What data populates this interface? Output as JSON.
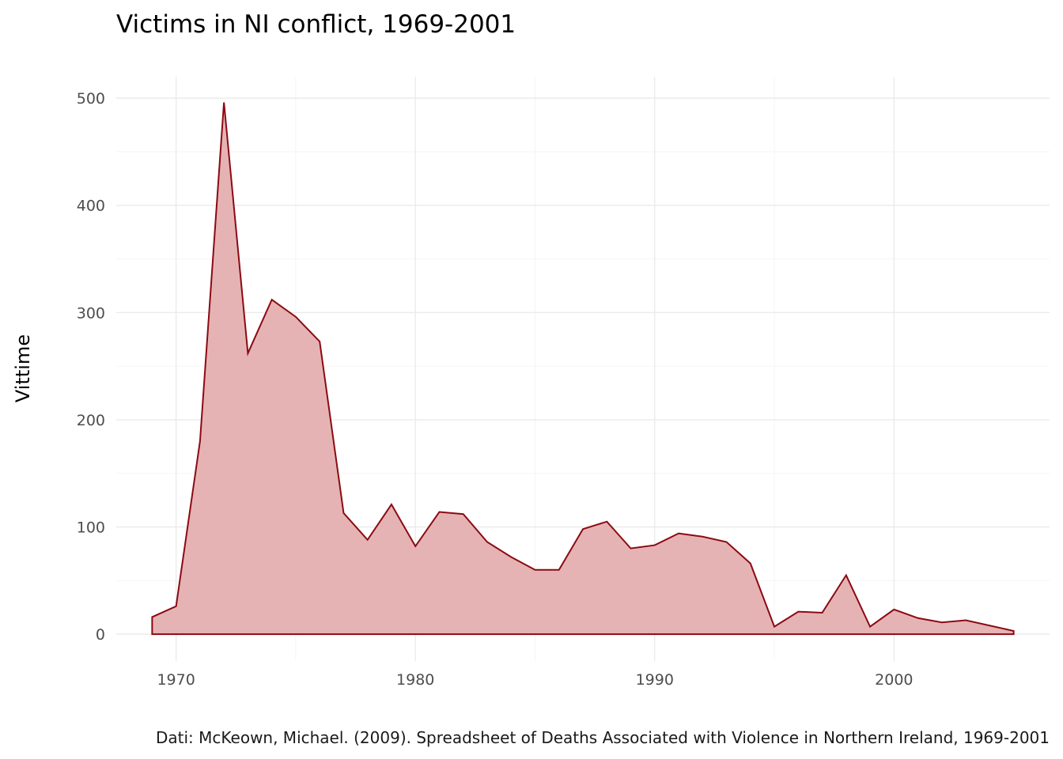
{
  "title": "Victims in NI conflict, 1969-2001",
  "caption": "Dati: McKeown, Michael. (2009). Spreadsheet of Deaths Associated with Violence in Northern Ireland, 1969-2001",
  "colors": {
    "fill": "#e6b3b4",
    "line": "#8b0a12",
    "grid": "#ebebeb",
    "tick_text": "#4d4d4d"
  },
  "chart_data": {
    "type": "area",
    "title": "Victims in NI conflict, 1969-2001",
    "xlabel": "",
    "ylabel": "Vittime",
    "xlim": [
      1967.5,
      2006.5
    ],
    "ylim": [
      -25,
      520
    ],
    "x_ticks": [
      1970,
      1980,
      1990,
      2000
    ],
    "y_ticks": [
      0,
      100,
      200,
      300,
      400,
      500
    ],
    "grid": true,
    "legend": "none",
    "x": [
      1969,
      1970,
      1971,
      1972,
      1973,
      1974,
      1975,
      1976,
      1977,
      1978,
      1979,
      1980,
      1981,
      1982,
      1983,
      1984,
      1985,
      1986,
      1987,
      1988,
      1989,
      1990,
      1991,
      1992,
      1993,
      1994,
      1995,
      1996,
      1997,
      1998,
      1999,
      2000,
      2001,
      2002,
      2003,
      2004,
      2005
    ],
    "y": [
      16,
      26,
      180,
      496,
      262,
      312,
      296,
      273,
      113,
      88,
      121,
      82,
      114,
      112,
      86,
      72,
      60,
      60,
      98,
      105,
      80,
      83,
      94,
      91,
      86,
      66,
      7,
      21,
      20,
      55,
      7,
      23,
      15,
      11,
      13,
      8,
      3
    ]
  }
}
